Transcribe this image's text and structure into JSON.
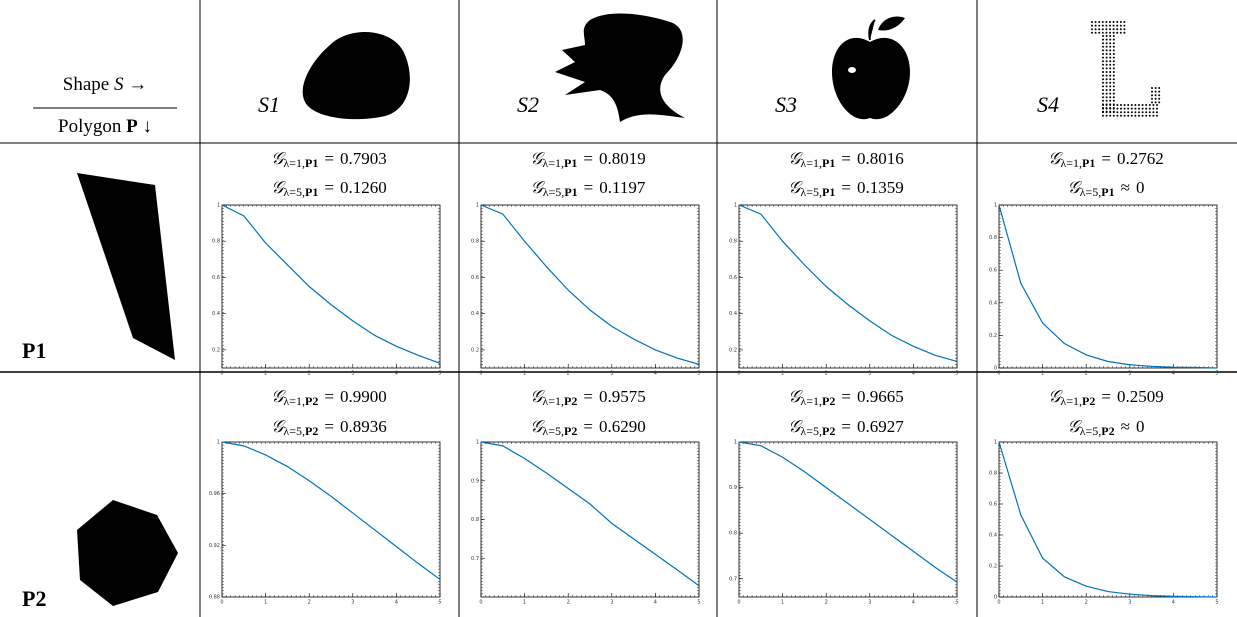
{
  "header": {
    "corner_top": [
      "Shape",
      "S",
      "→"
    ],
    "corner_bottom": [
      "Polygon",
      "P",
      "↓"
    ],
    "shapes": [
      "S1",
      "S2",
      "S3",
      "S4"
    ]
  },
  "symbol": "𝒢",
  "rows": [
    {
      "label": "P1",
      "cells": [
        {
          "lines": [
            {
              "lambda": "λ=1,",
              "poly": "P1",
              "rel": "=",
              "value": "0.7903"
            },
            {
              "lambda": "λ=5,",
              "poly": "P1",
              "rel": "=",
              "value": "0.1260"
            }
          ],
          "plot": {
            "type": "line",
            "x": [
              0,
              0.5,
              1,
              1.5,
              2,
              2.5,
              3,
              3.5,
              4,
              4.5,
              5
            ],
            "values": [
              1,
              0.94,
              0.79,
              0.67,
              0.55,
              0.45,
              0.36,
              0.28,
              0.22,
              0.17,
              0.126
            ],
            "xlim": [
              0,
              5
            ],
            "ylim": [
              0.1,
              1
            ],
            "xticks": [
              0,
              1,
              2,
              3,
              4,
              5
            ],
            "yticks": [
              0.2,
              0.4,
              0.6,
              0.8,
              1
            ],
            "color": "#0072bd"
          }
        },
        {
          "lines": [
            {
              "lambda": "λ=1,",
              "poly": "P1",
              "rel": "=",
              "value": "0.8019"
            },
            {
              "lambda": "λ=5,",
              "poly": "P1",
              "rel": "=",
              "value": "0.1197"
            }
          ],
          "plot": {
            "type": "line",
            "x": [
              0,
              0.5,
              1,
              1.5,
              2,
              2.5,
              3,
              3.5,
              4,
              4.5,
              5
            ],
            "values": [
              1,
              0.95,
              0.8,
              0.66,
              0.53,
              0.42,
              0.33,
              0.26,
              0.2,
              0.155,
              0.12
            ],
            "xlim": [
              0,
              5
            ],
            "ylim": [
              0.1,
              1
            ],
            "xticks": [
              0,
              1,
              2,
              3,
              4,
              5
            ],
            "yticks": [
              0.2,
              0.4,
              0.6,
              0.8,
              1
            ],
            "color": "#0072bd"
          }
        },
        {
          "lines": [
            {
              "lambda": "λ=1,",
              "poly": "P1",
              "rel": "=",
              "value": "0.8016"
            },
            {
              "lambda": "λ=5,",
              "poly": "P1",
              "rel": "=",
              "value": "0.1359"
            }
          ],
          "plot": {
            "type": "line",
            "x": [
              0,
              0.5,
              1,
              1.5,
              2,
              2.5,
              3,
              3.5,
              4,
              4.5,
              5
            ],
            "values": [
              1,
              0.95,
              0.8,
              0.67,
              0.55,
              0.45,
              0.36,
              0.28,
              0.22,
              0.17,
              0.136
            ],
            "xlim": [
              0,
              5
            ],
            "ylim": [
              0.1,
              1
            ],
            "xticks": [
              0,
              1,
              2,
              3,
              4,
              5
            ],
            "yticks": [
              0.2,
              0.4,
              0.6,
              0.8,
              1
            ],
            "color": "#0072bd"
          }
        },
        {
          "lines": [
            {
              "lambda": "λ=1,",
              "poly": "P1",
              "rel": "=",
              "value": "0.2762"
            },
            {
              "lambda": "λ=5,",
              "poly": "P1",
              "rel": "≈",
              "value": "0"
            }
          ],
          "plot": {
            "type": "line",
            "x": [
              0,
              0.5,
              1,
              1.5,
              2,
              2.5,
              3,
              3.5,
              4,
              4.5,
              5
            ],
            "values": [
              1,
              0.52,
              0.276,
              0.15,
              0.08,
              0.04,
              0.02,
              0.01,
              0.005,
              0.003,
              0
            ],
            "xlim": [
              0,
              5
            ],
            "ylim": [
              0,
              1
            ],
            "xticks": [
              0,
              1,
              2,
              3,
              4,
              5
            ],
            "yticks": [
              0,
              0.2,
              0.4,
              0.6,
              0.8,
              1
            ],
            "color": "#0072bd"
          }
        }
      ]
    },
    {
      "label": "P2",
      "cells": [
        {
          "lines": [
            {
              "lambda": "λ=1,",
              "poly": "P2",
              "rel": "=",
              "value": "0.9900"
            },
            {
              "lambda": "λ=5,",
              "poly": "P2",
              "rel": "=",
              "value": "0.8936"
            }
          ],
          "plot": {
            "type": "line",
            "x": [
              0,
              0.5,
              1,
              1.5,
              2,
              2.5,
              3,
              3.5,
              4,
              4.5,
              5
            ],
            "values": [
              1,
              0.997,
              0.99,
              0.981,
              0.97,
              0.958,
              0.945,
              0.932,
              0.919,
              0.906,
              0.8936
            ],
            "xlim": [
              0,
              5
            ],
            "ylim": [
              0.88,
              1
            ],
            "xticks": [
              0,
              1,
              2,
              3,
              4,
              5
            ],
            "yticks": [
              0.88,
              0.92,
              0.96,
              1
            ],
            "color": "#0072bd"
          }
        },
        {
          "lines": [
            {
              "lambda": "λ=1,",
              "poly": "P2",
              "rel": "=",
              "value": "0.9575"
            },
            {
              "lambda": "λ=5,",
              "poly": "P2",
              "rel": "=",
              "value": "0.6290"
            }
          ],
          "plot": {
            "type": "line",
            "x": [
              0,
              0.5,
              1,
              1.5,
              2,
              2.5,
              3,
              3.5,
              4,
              4.5,
              5
            ],
            "values": [
              1,
              0.99,
              0.9575,
              0.92,
              0.88,
              0.84,
              0.79,
              0.75,
              0.71,
              0.67,
              0.629
            ],
            "xlim": [
              0,
              5
            ],
            "ylim": [
              0.6,
              1
            ],
            "xticks": [
              0,
              1,
              2,
              3,
              4,
              5
            ],
            "yticks": [
              0.7,
              0.8,
              0.9,
              1
            ],
            "color": "#0072bd"
          }
        },
        {
          "lines": [
            {
              "lambda": "λ=1,",
              "poly": "P2",
              "rel": "=",
              "value": "0.9665"
            },
            {
              "lambda": "λ=5,",
              "poly": "P2",
              "rel": "=",
              "value": "0.6927"
            }
          ],
          "plot": {
            "type": "line",
            "x": [
              0,
              0.5,
              1,
              1.5,
              2,
              2.5,
              3,
              3.5,
              4,
              4.5,
              5
            ],
            "values": [
              1,
              0.992,
              0.9665,
              0.935,
              0.9,
              0.865,
              0.83,
              0.795,
              0.76,
              0.725,
              0.6927
            ],
            "xlim": [
              0,
              5
            ],
            "ylim": [
              0.66,
              1
            ],
            "xticks": [
              0,
              1,
              2,
              3,
              4,
              5
            ],
            "yticks": [
              0.7,
              0.8,
              0.9,
              1
            ],
            "color": "#0072bd"
          }
        },
        {
          "lines": [
            {
              "lambda": "λ=1,",
              "poly": "P2",
              "rel": "=",
              "value": "0.2509"
            },
            {
              "lambda": "λ=5,",
              "poly": "P2",
              "rel": "≈",
              "value": "0"
            }
          ],
          "plot": {
            "type": "line",
            "x": [
              0,
              0.5,
              1,
              1.5,
              2,
              2.5,
              3,
              3.5,
              4,
              4.5,
              5
            ],
            "values": [
              1,
              0.53,
              0.2509,
              0.13,
              0.07,
              0.035,
              0.018,
              0.009,
              0.004,
              0.002,
              0
            ],
            "xlim": [
              0,
              5
            ],
            "ylim": [
              0,
              1
            ],
            "xticks": [
              0,
              1,
              2,
              3,
              4,
              5
            ],
            "yticks": [
              0,
              0.2,
              0.4,
              0.6,
              0.8,
              1
            ],
            "color": "#0072bd"
          }
        }
      ]
    }
  ]
}
